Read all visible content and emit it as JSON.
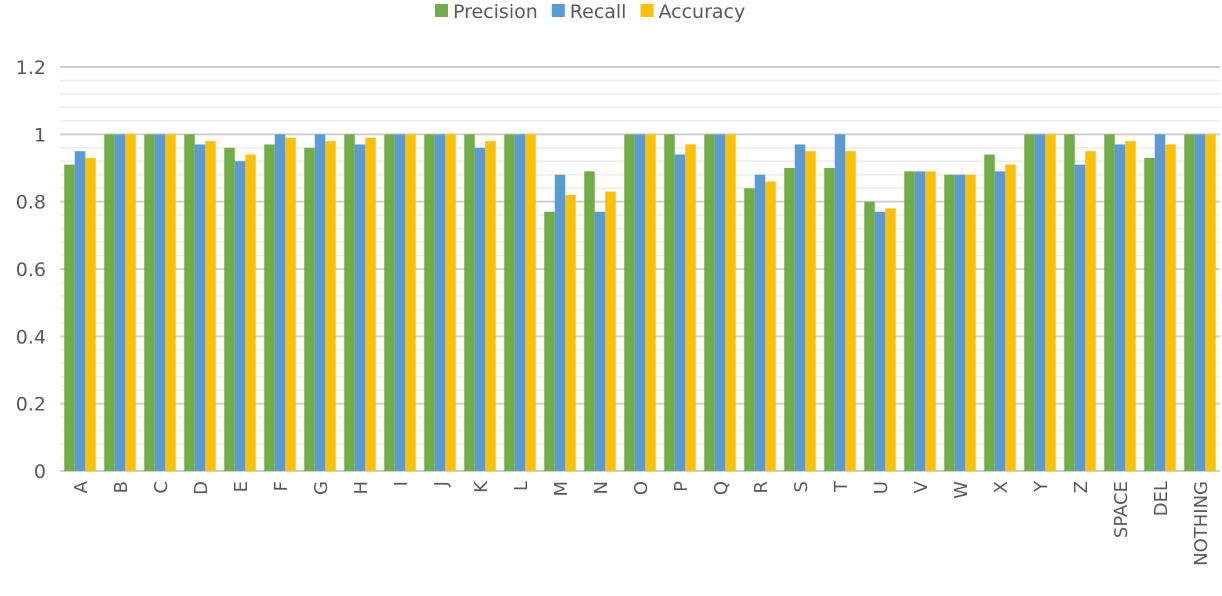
{
  "chart_data": {
    "type": "bar",
    "title": "",
    "xlabel": "",
    "ylabel": "",
    "ylim": [
      0,
      1.2
    ],
    "yticks": [
      "0",
      "0.2",
      "0.4",
      "0.6",
      "0.8",
      "1",
      "1.2"
    ],
    "grid": true,
    "legend_position": "top",
    "categories": [
      "A",
      "B",
      "C",
      "D",
      "E",
      "F",
      "G",
      "H",
      "I",
      "J",
      "K",
      "L",
      "M",
      "N",
      "O",
      "P",
      "Q",
      "R",
      "S",
      "T",
      "U",
      "V",
      "W",
      "X",
      "Y",
      "Z",
      "SPACE",
      "DEL",
      "NOTHING"
    ],
    "series": [
      {
        "name": "Precision",
        "color": "#70AD47",
        "values": [
          0.91,
          1,
          1,
          1,
          0.96,
          0.97,
          0.96,
          1,
          1,
          1,
          1,
          1,
          0.77,
          0.89,
          1,
          1,
          1,
          0.84,
          0.9,
          0.9,
          0.8,
          0.89,
          0.88,
          0.94,
          1,
          1,
          1,
          0.93,
          1
        ]
      },
      {
        "name": "Recall",
        "color": "#5B9BD5",
        "values": [
          0.95,
          1,
          1,
          0.97,
          0.92,
          1,
          1,
          0.97,
          1,
          1,
          0.96,
          1,
          0.88,
          0.77,
          1,
          0.94,
          1,
          0.88,
          0.97,
          1,
          0.77,
          0.89,
          0.88,
          0.89,
          1,
          0.91,
          0.97,
          1,
          1
        ]
      },
      {
        "name": "Accuracy",
        "color": "#FFC000",
        "values": [
          0.93,
          1,
          1,
          0.98,
          0.94,
          0.99,
          0.98,
          0.99,
          1,
          1,
          0.98,
          1,
          0.82,
          0.83,
          1,
          0.97,
          1,
          0.86,
          0.95,
          0.95,
          0.78,
          0.89,
          0.88,
          0.91,
          1,
          0.95,
          0.98,
          0.97,
          1
        ]
      }
    ]
  }
}
